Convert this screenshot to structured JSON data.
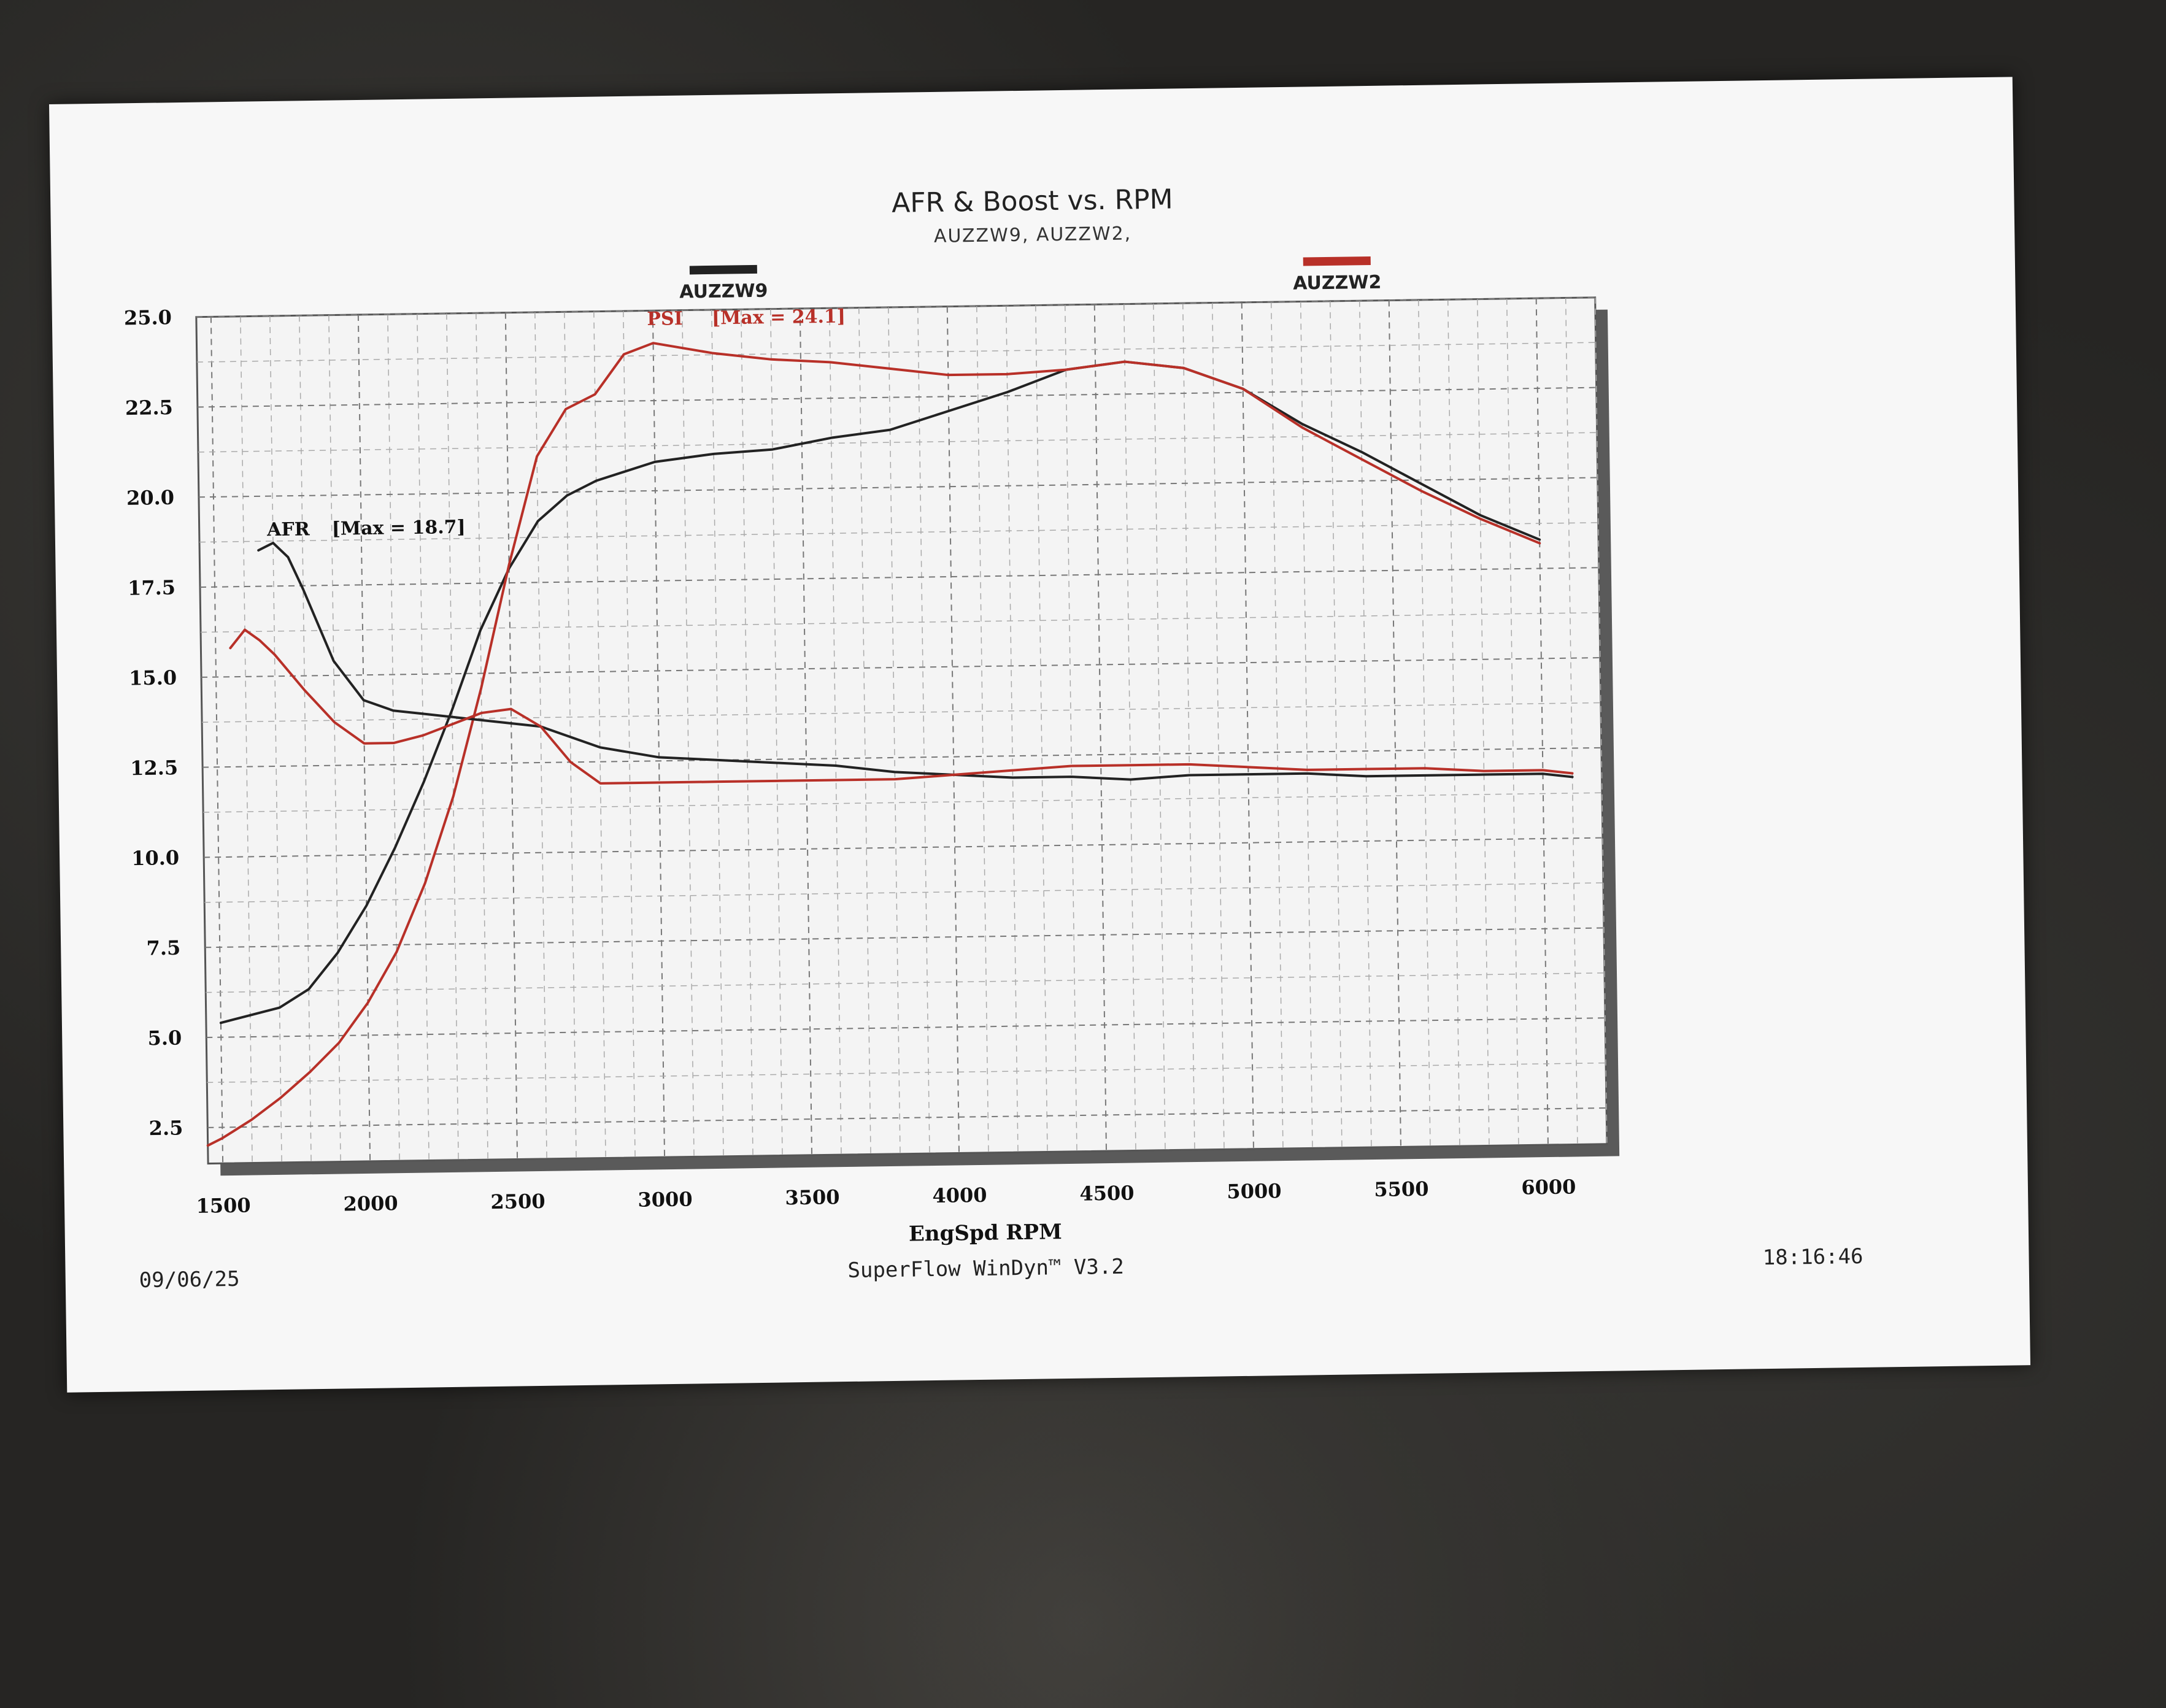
{
  "chart_data": {
    "type": "line",
    "title": "AFR & Boost vs. RPM",
    "subtitle": "AUZZW9, AUZZW2,",
    "xlabel": "EngSpd RPM",
    "ylabel": "",
    "xlim": [
      1450,
      6200
    ],
    "ylim": [
      1.5,
      25
    ],
    "x_ticks": [
      1500,
      2000,
      2500,
      3000,
      3500,
      4000,
      4500,
      5000,
      5500,
      6000
    ],
    "y_ticks": [
      2.5,
      5.0,
      7.5,
      10.0,
      12.5,
      15.0,
      17.5,
      20.0,
      22.5,
      25.0
    ],
    "x_tick_labels": [
      "1500",
      "2000",
      "2500",
      "3000",
      "3500",
      "4000",
      "4500",
      "5000",
      "5500",
      "6000"
    ],
    "y_tick_labels": [
      "2.5",
      "5.0",
      "7.5",
      "10.0",
      "12.5",
      "15.0",
      "17.5",
      "20.0",
      "22.5",
      "25.0"
    ],
    "grid": true,
    "legend": [
      {
        "label": "AUZZW9",
        "color": "#222222",
        "position": "top-left"
      },
      {
        "label": "AUZZW2",
        "color": "#b83028",
        "position": "top-right"
      }
    ],
    "annotations": [
      {
        "text": "AFR",
        "x": 1680,
        "y": 18.9,
        "color": "#111111"
      },
      {
        "text": "[Max = 18.7]",
        "x": 1900,
        "y": 18.9,
        "color": "#111111"
      },
      {
        "text": "PSI",
        "x": 2980,
        "y": 24.6,
        "color": "#b83028"
      },
      {
        "text": "[Max = 24.1]",
        "x": 3200,
        "y": 24.6,
        "color": "#b83028"
      }
    ],
    "series": [
      {
        "run": "AUZZW9",
        "measure": "PSI",
        "color": "#222222",
        "x": [
          1500,
          1600,
          1700,
          1800,
          1900,
          2000,
          2100,
          2200,
          2300,
          2400,
          2500,
          2600,
          2700,
          2800,
          3000,
          3200,
          3400,
          3600,
          3800,
          4000,
          4200,
          4400,
          4600,
          4800,
          5000,
          5200,
          5400,
          5600,
          5800,
          6000
        ],
        "y": [
          5.4,
          5.6,
          5.8,
          6.3,
          7.3,
          8.6,
          10.2,
          12.0,
          14.0,
          16.2,
          17.9,
          19.2,
          19.9,
          20.3,
          20.8,
          21.0,
          21.1,
          21.4,
          21.6,
          22.1,
          22.6,
          23.2,
          23.4,
          23.2,
          22.6,
          21.6,
          20.8,
          19.9,
          19.0,
          18.3
        ]
      },
      {
        "run": "AUZZW2",
        "measure": "PSI",
        "color": "#b83028",
        "x": [
          1450,
          1500,
          1600,
          1700,
          1800,
          1900,
          2000,
          2100,
          2200,
          2300,
          2400,
          2500,
          2600,
          2700,
          2800,
          2900,
          3000,
          3200,
          3400,
          3600,
          3800,
          4000,
          4200,
          4400,
          4600,
          4800,
          5000,
          5200,
          5400,
          5600,
          5800,
          6000
        ],
        "y": [
          2.0,
          2.2,
          2.7,
          3.3,
          4.0,
          4.8,
          5.9,
          7.3,
          9.2,
          11.6,
          14.6,
          18.0,
          21.0,
          22.3,
          22.7,
          23.8,
          24.1,
          23.8,
          23.6,
          23.5,
          23.3,
          23.1,
          23.1,
          23.2,
          23.4,
          23.2,
          22.6,
          21.5,
          20.6,
          19.7,
          18.9,
          18.2
        ]
      },
      {
        "run": "AUZZW9",
        "measure": "AFR",
        "color": "#222222",
        "x": [
          1650,
          1700,
          1750,
          1800,
          1900,
          2000,
          2100,
          2200,
          2400,
          2600,
          2800,
          3000,
          3200,
          3400,
          3600,
          3800,
          4000,
          4200,
          4400,
          4600,
          4800,
          5000,
          5200,
          5400,
          5600,
          5800,
          6000,
          6100
        ],
        "y": [
          18.5,
          18.7,
          18.3,
          17.4,
          15.4,
          14.3,
          14.0,
          13.9,
          13.7,
          13.5,
          12.9,
          12.6,
          12.5,
          12.4,
          12.3,
          12.1,
          12.0,
          11.9,
          11.9,
          11.8,
          11.9,
          11.9,
          11.9,
          11.8,
          11.8,
          11.8,
          11.8,
          11.7
        ]
      },
      {
        "run": "AUZZW2",
        "measure": "AFR",
        "color": "#b83028",
        "x": [
          1550,
          1600,
          1650,
          1700,
          1800,
          1900,
          2000,
          2100,
          2200,
          2300,
          2400,
          2500,
          2600,
          2700,
          2800,
          3000,
          3200,
          3400,
          3600,
          3800,
          4000,
          4200,
          4400,
          4600,
          4800,
          5000,
          5200,
          5400,
          5600,
          5800,
          6000,
          6100
        ],
        "y": [
          15.8,
          16.3,
          16.0,
          15.6,
          14.6,
          13.7,
          13.1,
          13.1,
          13.3,
          13.6,
          13.9,
          14.0,
          13.5,
          12.5,
          11.9,
          11.9,
          11.9,
          11.9,
          11.9,
          11.9,
          12.0,
          12.1,
          12.2,
          12.2,
          12.2,
          12.1,
          12.0,
          12.0,
          12.0,
          11.9,
          11.9,
          11.8
        ]
      }
    ]
  },
  "footer": {
    "date": "09/06/25",
    "software": "SuperFlow WinDyn™ V3.2",
    "time": "18:16:46"
  }
}
